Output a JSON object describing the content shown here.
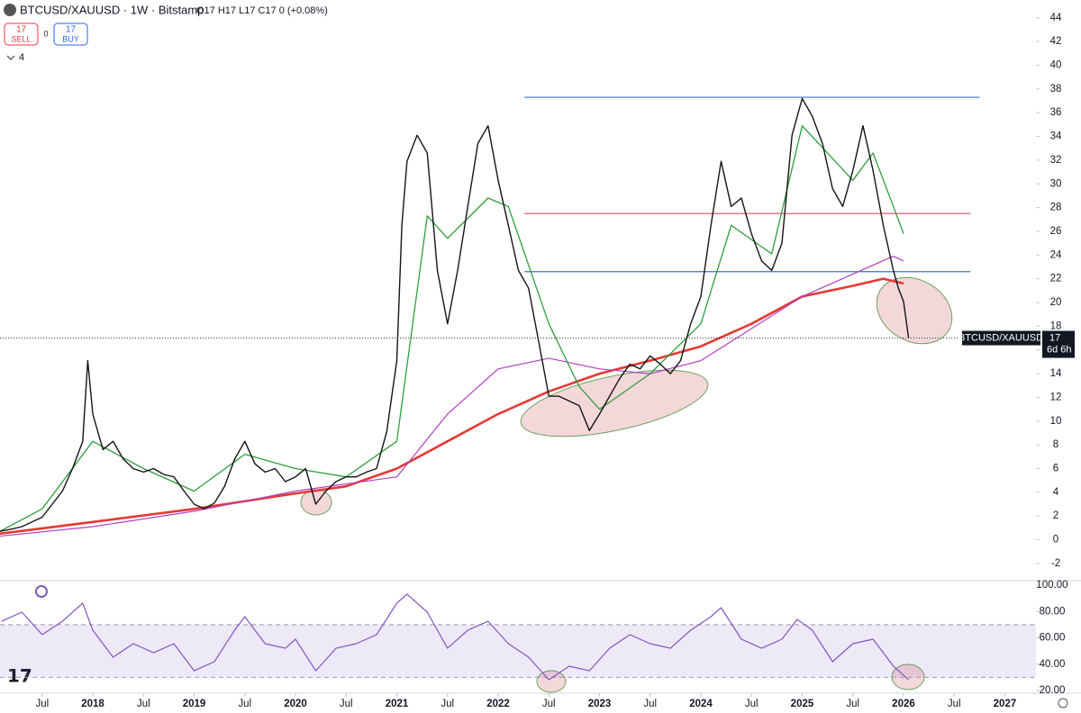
{
  "header": {
    "title": "BTCUSD/XAUUSD · 1W · Bitstamp",
    "ohlc": "O17 H17 L17 C17 0 (+0.08%)",
    "sell_price": 17,
    "sell": "SELL",
    "spread": 0,
    "buy_price": 17,
    "buy": "BUY",
    "indicators_count": 4
  },
  "price_label": {
    "symbol": "BTCUSD/XAUUSD",
    "countdown": "6d 6h"
  },
  "chart_data": [
    {
      "type": "line",
      "xlim": [
        2017.084,
        2027.307
      ],
      "ylim": [
        -3.3,
        45.5
      ],
      "yticks": [
        -2,
        0,
        2,
        4,
        6,
        8,
        10,
        12,
        14,
        16,
        18,
        20,
        22,
        24,
        26,
        28,
        30,
        32,
        34,
        36,
        38,
        40,
        42,
        44
      ],
      "series": [
        {
          "color": "#141414",
          "width": 1.4,
          "x": [
            2017.08,
            2017.2,
            2017.3,
            2017.4,
            2017.5,
            2017.6,
            2017.7,
            2017.8,
            2017.9,
            2017.95,
            2018.0,
            2018.1,
            2018.2,
            2018.3,
            2018.4,
            2018.5,
            2018.6,
            2018.7,
            2018.8,
            2018.9,
            2019.0,
            2019.1,
            2019.2,
            2019.3,
            2019.4,
            2019.5,
            2019.6,
            2019.7,
            2019.8,
            2019.9,
            2020.0,
            2020.1,
            2020.2,
            2020.3,
            2020.4,
            2020.5,
            2020.6,
            2020.7,
            2020.8,
            2020.9,
            2021.0,
            2021.05,
            2021.1,
            2021.2,
            2021.3,
            2021.4,
            2021.5,
            2021.6,
            2021.7,
            2021.8,
            2021.9,
            2022.0,
            2022.1,
            2022.2,
            2022.3,
            2022.4,
            2022.5,
            2022.6,
            2022.7,
            2022.8,
            2022.9,
            2023.0,
            2023.1,
            2023.2,
            2023.3,
            2023.4,
            2023.5,
            2023.6,
            2023.7,
            2023.8,
            2023.9,
            2024.0,
            2024.1,
            2024.2,
            2024.3,
            2024.4,
            2024.5,
            2024.6,
            2024.7,
            2024.8,
            2024.9,
            2025.0,
            2025.1,
            2025.2,
            2025.3,
            2025.4,
            2025.5,
            2025.6,
            2025.7,
            2025.8,
            2025.9,
            2025.95,
            2026.0,
            2026.05
          ],
          "values": [
            0.7,
            0.9,
            1.1,
            1.5,
            1.9,
            3.0,
            4.1,
            6.0,
            8.3,
            15.1,
            10.6,
            7.6,
            8.3,
            6.8,
            6.0,
            5.7,
            6.0,
            5.5,
            5.3,
            4.1,
            3.0,
            2.6,
            3.1,
            4.5,
            6.8,
            8.3,
            6.4,
            5.7,
            6.0,
            4.9,
            5.3,
            6.0,
            3.0,
            4.1,
            4.9,
            5.3,
            5.3,
            5.7,
            6.0,
            9.1,
            15.1,
            26.5,
            31.9,
            34.1,
            32.6,
            22.7,
            18.2,
            22.7,
            28.1,
            33.4,
            34.9,
            30.3,
            26.5,
            22.7,
            21.2,
            16.7,
            12.1,
            12.1,
            11.7,
            11.3,
            9.2,
            10.6,
            12.1,
            13.6,
            14.8,
            14.4,
            15.5,
            14.8,
            14.0,
            15.1,
            18.2,
            20.5,
            26.5,
            31.9,
            28.1,
            28.8,
            25.8,
            23.5,
            22.7,
            25.0,
            34.1,
            37.2,
            35.7,
            33.4,
            29.6,
            28.1,
            31.1,
            34.9,
            31.1,
            26.5,
            22.7,
            21.2,
            20.1,
            17
          ]
        },
        {
          "color": "#2e9e3e",
          "width": 1.3,
          "x": [
            2017.08,
            2017.5,
            2018.0,
            2018.5,
            2019.0,
            2019.5,
            2020.0,
            2020.5,
            2021.0,
            2021.3,
            2021.5,
            2021.9,
            2022.1,
            2022.5,
            2022.8,
            2023.0,
            2023.5,
            2024.0,
            2024.3,
            2024.7,
            2025.0,
            2025.5,
            2025.7,
            2025.9,
            2026.0
          ],
          "values": [
            0.7,
            2.6,
            8.3,
            6.0,
            4.1,
            7.2,
            6.0,
            5.3,
            8.3,
            27.3,
            25.4,
            28.8,
            28.1,
            18.2,
            12.9,
            11.0,
            14.0,
            18.2,
            26.5,
            24.1,
            34.9,
            30.3,
            32.6,
            28.1,
            25.8
          ]
        },
        {
          "color": "#b040c0",
          "width": 1.2,
          "x": [
            2017.08,
            2018.0,
            2019.0,
            2020.0,
            2021.0,
            2021.5,
            2022.0,
            2022.5,
            2023.0,
            2023.5,
            2024.0,
            2024.5,
            2025.0,
            2025.5,
            2025.9,
            2026.0
          ],
          "values": [
            0.3,
            1.1,
            2.4,
            4.1,
            5.3,
            10.6,
            14.4,
            15.3,
            14.4,
            14.0,
            15.1,
            17.8,
            20.5,
            22.4,
            23.9,
            23.5
          ]
        },
        {
          "color": "#e53935",
          "width": 2.6,
          "x": [
            2017.08,
            2018.0,
            2019.0,
            2020.0,
            2020.5,
            2021.0,
            2021.5,
            2022.0,
            2022.5,
            2023.0,
            2023.5,
            2024.0,
            2024.5,
            2025.0,
            2025.5,
            2025.8,
            2026.0
          ],
          "values": [
            0.5,
            1.5,
            2.6,
            3.9,
            4.5,
            6.0,
            8.3,
            10.6,
            12.5,
            14.0,
            15.1,
            16.3,
            18.2,
            20.5,
            21.4,
            22.0,
            21.6
          ]
        }
      ],
      "levels": [
        {
          "value": 37.3,
          "color": "#3a6fd8",
          "x": [
            2022.26,
            2026.75
          ]
        },
        {
          "value": 27.5,
          "color": "#e04a5a",
          "x": [
            2022.26,
            2026.66
          ]
        },
        {
          "value": 22.6,
          "color": "#3a6fd8",
          "x": [
            2022.26,
            2026.66
          ]
        }
      ]
    },
    {
      "type": "line",
      "xlim": [
        2017.084,
        2027.307
      ],
      "ylim": [
        18,
        103.4
      ],
      "yticks": [
        {
          "value": 100,
          "label": "100.00"
        },
        {
          "value": 80,
          "label": "80.00"
        },
        {
          "value": 60,
          "label": "60.00"
        },
        {
          "value": 40,
          "label": "40.00"
        },
        {
          "value": 20,
          "label": "20.00"
        }
      ],
      "band": [
        30,
        70
      ],
      "xticks": [
        {
          "value": 2017.5,
          "label": "Jul"
        },
        2018,
        {
          "value": 2018.5,
          "label": "Jul"
        },
        2019,
        {
          "value": 2019.5,
          "label": "Jul"
        },
        2020,
        {
          "value": 2020.5,
          "label": "Jul"
        },
        2021,
        {
          "value": 2021.5,
          "label": "Jul"
        },
        2022,
        {
          "value": 2022.5,
          "label": "Jul"
        },
        2023,
        {
          "value": 2023.5,
          "label": "Jul"
        },
        2024,
        {
          "value": 2024.5,
          "label": "Jul"
        },
        2025,
        {
          "value": 2025.5,
          "label": "Jul"
        },
        2026,
        {
          "value": 2026.5,
          "label": "Jul"
        },
        2027
      ],
      "series": [
        {
          "color": "#7e57c2",
          "width": 1.2,
          "x": [
            2017.1,
            2017.3,
            2017.5,
            2017.7,
            2017.9,
            2018.0,
            2018.2,
            2018.4,
            2018.6,
            2018.8,
            2019.0,
            2019.2,
            2019.4,
            2019.5,
            2019.7,
            2019.9,
            2020.0,
            2020.2,
            2020.4,
            2020.6,
            2020.8,
            2021.0,
            2021.1,
            2021.3,
            2021.5,
            2021.7,
            2021.9,
            2022.1,
            2022.3,
            2022.5,
            2022.7,
            2022.9,
            2023.1,
            2023.3,
            2023.5,
            2023.7,
            2023.9,
            2024.1,
            2024.2,
            2024.4,
            2024.6,
            2024.8,
            2024.95,
            2025.1,
            2025.3,
            2025.5,
            2025.7,
            2025.9,
            2026.0,
            2026.05
          ],
          "values": [
            72.6,
            79.5,
            62.4,
            72.6,
            86.3,
            65.8,
            45.3,
            55.6,
            48.7,
            55.6,
            35.0,
            41.9,
            65.8,
            76.1,
            55.6,
            52.1,
            59.0,
            35.0,
            52.1,
            55.6,
            62.4,
            86.3,
            93.2,
            79.5,
            52.1,
            65.8,
            72.6,
            55.6,
            45.3,
            28.2,
            38.5,
            35.0,
            52.1,
            62.4,
            55.6,
            52.1,
            65.8,
            76.1,
            82.9,
            59.0,
            52.1,
            59.0,
            74.0,
            65.8,
            41.9,
            55.6,
            59.0,
            38.5,
            31.6,
            28.2
          ]
        }
      ]
    }
  ]
}
